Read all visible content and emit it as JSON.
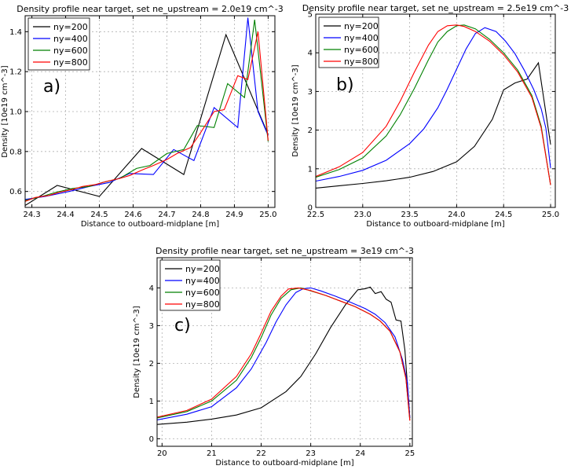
{
  "chart_data": [
    {
      "type": "line",
      "panel_label": "a)",
      "title": "Density profile near target, set ne_upstream = 2.0e19 cm^-3",
      "xlabel": "Distance to outboard-midplane [m]",
      "ylabel": "Density [10e19 cm^-3]",
      "xlim": [
        24.28,
        25.02
      ],
      "ylim": [
        0.52,
        1.48
      ],
      "xticks": [
        24.3,
        24.4,
        24.5,
        24.6,
        24.7,
        24.8,
        24.9,
        25.0
      ],
      "xtick_labels": [
        "24.3",
        "24.4",
        "24.5",
        "24.6",
        "24.7",
        "24.8",
        "24.9",
        "25.0"
      ],
      "yticks": [
        0.6,
        0.8,
        1.0,
        1.2,
        1.4
      ],
      "ytick_labels": [
        "0.6",
        "0.8",
        "1.0",
        "1.2",
        "1.4"
      ],
      "grid": true,
      "legend": "top-left",
      "series": [
        {
          "name": "ny=200",
          "color": "#000000",
          "x": [
            24.28,
            24.375,
            24.5,
            24.625,
            24.75,
            24.875,
            25.0
          ],
          "y": [
            0.53,
            0.63,
            0.575,
            0.815,
            0.685,
            1.385,
            0.885
          ]
        },
        {
          "name": "ny=400",
          "color": "#0000ff",
          "x": [
            24.28,
            24.34,
            24.41,
            24.47,
            24.53,
            24.59,
            24.66,
            24.72,
            24.78,
            24.84,
            24.91,
            24.94,
            24.97,
            25.0
          ],
          "y": [
            0.56,
            0.575,
            0.6,
            0.625,
            0.645,
            0.69,
            0.685,
            0.81,
            0.755,
            1.02,
            0.92,
            1.47,
            1.0,
            0.88
          ]
        },
        {
          "name": "ny=600",
          "color": "#008000",
          "x": [
            24.28,
            24.33,
            24.37,
            24.42,
            24.47,
            24.51,
            24.56,
            24.61,
            24.65,
            24.7,
            24.75,
            24.79,
            24.84,
            24.88,
            24.93,
            24.96,
            25.0
          ],
          "y": [
            0.555,
            0.575,
            0.595,
            0.615,
            0.625,
            0.645,
            0.665,
            0.715,
            0.73,
            0.79,
            0.81,
            0.93,
            0.92,
            1.14,
            1.07,
            1.46,
            0.85
          ]
        },
        {
          "name": "ny=800",
          "color": "#ff0000",
          "x": [
            24.28,
            24.31,
            24.35,
            24.38,
            24.42,
            24.45,
            24.49,
            24.52,
            24.56,
            24.59,
            24.63,
            24.66,
            24.7,
            24.73,
            24.77,
            24.8,
            24.84,
            24.87,
            24.91,
            24.94,
            24.97,
            25.0
          ],
          "y": [
            0.55,
            0.57,
            0.58,
            0.595,
            0.61,
            0.625,
            0.635,
            0.65,
            0.665,
            0.68,
            0.71,
            0.73,
            0.76,
            0.79,
            0.82,
            0.895,
            1.0,
            1.01,
            1.18,
            1.16,
            1.4,
            0.855
          ]
        }
      ]
    },
    {
      "type": "line",
      "panel_label": "b)",
      "title": "Density profile near target, set ne_upstream = 2.5e19 cm^-3",
      "xlabel": "Distance to outboard-midplane [m]",
      "ylabel": "Density [10e19 cm^-3]",
      "xlim": [
        22.5,
        25.05
      ],
      "ylim": [
        0,
        5
      ],
      "xticks": [
        22.5,
        23.0,
        23.5,
        24.0,
        24.5,
        25.0
      ],
      "xtick_labels": [
        "22.5",
        "23.0",
        "23.5",
        "24.0",
        "24.5",
        "25.0"
      ],
      "yticks": [
        0,
        1,
        2,
        3,
        4,
        5
      ],
      "ytick_labels": [
        "0",
        "1",
        "2",
        "3",
        "4",
        "5"
      ],
      "grid": true,
      "legend": "top-left",
      "series": [
        {
          "name": "ny=200",
          "color": "#000000",
          "x": [
            22.5,
            22.75,
            23.0,
            23.25,
            23.5,
            23.75,
            24.0,
            24.19,
            24.38,
            24.5,
            24.62,
            24.75,
            24.87,
            25.0
          ],
          "y": [
            0.5,
            0.56,
            0.62,
            0.69,
            0.78,
            0.93,
            1.18,
            1.58,
            2.28,
            3.04,
            3.22,
            3.32,
            3.74,
            1.63
          ]
        },
        {
          "name": "ny=400",
          "color": "#0000ff",
          "x": [
            22.5,
            22.75,
            23.0,
            23.25,
            23.5,
            23.65,
            23.8,
            23.9,
            24.0,
            24.1,
            24.2,
            24.3,
            24.42,
            24.52,
            24.62,
            24.72,
            24.82,
            24.9,
            24.95,
            25.0
          ],
          "y": [
            0.68,
            0.8,
            0.96,
            1.22,
            1.65,
            2.03,
            2.58,
            3.06,
            3.58,
            4.1,
            4.5,
            4.65,
            4.55,
            4.3,
            3.98,
            3.55,
            3.05,
            2.55,
            2.05,
            1.02
          ]
        },
        {
          "name": "ny=600",
          "color": "#008000",
          "x": [
            22.5,
            22.75,
            23.0,
            23.25,
            23.4,
            23.55,
            23.7,
            23.8,
            23.9,
            24.0,
            24.08,
            24.2,
            24.35,
            24.5,
            24.65,
            24.8,
            24.9,
            25.0
          ],
          "y": [
            0.78,
            0.98,
            1.28,
            1.85,
            2.4,
            3.08,
            3.82,
            4.28,
            4.55,
            4.7,
            4.72,
            4.62,
            4.35,
            4.0,
            3.55,
            2.9,
            2.1,
            0.58
          ]
        },
        {
          "name": "ny=800",
          "color": "#ff0000",
          "x": [
            22.5,
            22.75,
            23.0,
            23.25,
            23.4,
            23.55,
            23.7,
            23.8,
            23.9,
            24.0,
            24.08,
            24.2,
            24.35,
            24.5,
            24.65,
            24.8,
            24.9,
            25.0
          ],
          "y": [
            0.8,
            1.05,
            1.42,
            2.1,
            2.75,
            3.5,
            4.2,
            4.55,
            4.7,
            4.72,
            4.68,
            4.55,
            4.3,
            3.95,
            3.5,
            2.85,
            2.05,
            0.58
          ]
        }
      ]
    },
    {
      "type": "line",
      "panel_label": "c)",
      "title": "Density profile near target, set ne_upstream = 3e19 cm^-3",
      "xlabel": "Distance to outboard-midplane [m]",
      "ylabel": "Density [10e19 cm^-3]",
      "xlim": [
        19.9,
        25.05
      ],
      "ylim": [
        -0.2,
        4.8
      ],
      "xticks": [
        20,
        21,
        22,
        23,
        24,
        25
      ],
      "xtick_labels": [
        "20",
        "21",
        "22",
        "23",
        "24",
        "25"
      ],
      "yticks": [
        0,
        1,
        2,
        3,
        4
      ],
      "ytick_labels": [
        "0",
        "1",
        "2",
        "3",
        "4"
      ],
      "grid": true,
      "legend": "top-left",
      "series": [
        {
          "name": "ny=200",
          "color": "#000000",
          "x": [
            19.9,
            20.5,
            21.0,
            21.5,
            22.0,
            22.5,
            22.8,
            23.1,
            23.4,
            23.7,
            23.95,
            24.1,
            24.2,
            24.3,
            24.42,
            24.52,
            24.62,
            24.72,
            24.82,
            24.9,
            25.0
          ],
          "y": [
            0.38,
            0.44,
            0.52,
            0.63,
            0.82,
            1.25,
            1.65,
            2.25,
            2.95,
            3.55,
            3.95,
            3.98,
            4.02,
            3.85,
            3.9,
            3.7,
            3.62,
            3.15,
            3.12,
            2.35,
            0.55
          ]
        },
        {
          "name": "ny=400",
          "color": "#0000ff",
          "x": [
            19.9,
            20.5,
            21.0,
            21.5,
            21.8,
            22.1,
            22.3,
            22.5,
            22.7,
            22.85,
            23.0,
            23.2,
            23.5,
            23.8,
            24.1,
            24.3,
            24.5,
            24.7,
            24.85,
            24.95,
            25.0
          ],
          "y": [
            0.5,
            0.65,
            0.85,
            1.35,
            1.85,
            2.55,
            3.1,
            3.55,
            3.88,
            3.98,
            4.0,
            3.92,
            3.78,
            3.62,
            3.45,
            3.3,
            3.08,
            2.7,
            2.1,
            1.5,
            0.55
          ]
        },
        {
          "name": "ny=600",
          "color": "#008000",
          "x": [
            19.9,
            20.5,
            21.0,
            21.5,
            21.8,
            22.0,
            22.2,
            22.4,
            22.6,
            22.8,
            23.0,
            23.3,
            23.6,
            23.9,
            24.2,
            24.4,
            24.6,
            24.8,
            24.92,
            25.0
          ],
          "y": [
            0.55,
            0.72,
            1.0,
            1.55,
            2.15,
            2.68,
            3.28,
            3.72,
            3.95,
            4.0,
            3.92,
            3.8,
            3.65,
            3.5,
            3.3,
            3.12,
            2.85,
            2.3,
            1.6,
            0.5
          ]
        },
        {
          "name": "ny=800",
          "color": "#ff0000",
          "x": [
            19.9,
            20.5,
            21.0,
            21.5,
            21.8,
            22.0,
            22.2,
            22.4,
            22.55,
            22.75,
            23.0,
            23.3,
            23.6,
            23.9,
            24.2,
            24.4,
            24.6,
            24.8,
            24.92,
            25.0
          ],
          "y": [
            0.57,
            0.75,
            1.05,
            1.65,
            2.25,
            2.8,
            3.38,
            3.78,
            3.97,
            4.0,
            3.93,
            3.8,
            3.65,
            3.5,
            3.3,
            3.12,
            2.85,
            2.3,
            1.6,
            0.48
          ]
        }
      ]
    }
  ]
}
